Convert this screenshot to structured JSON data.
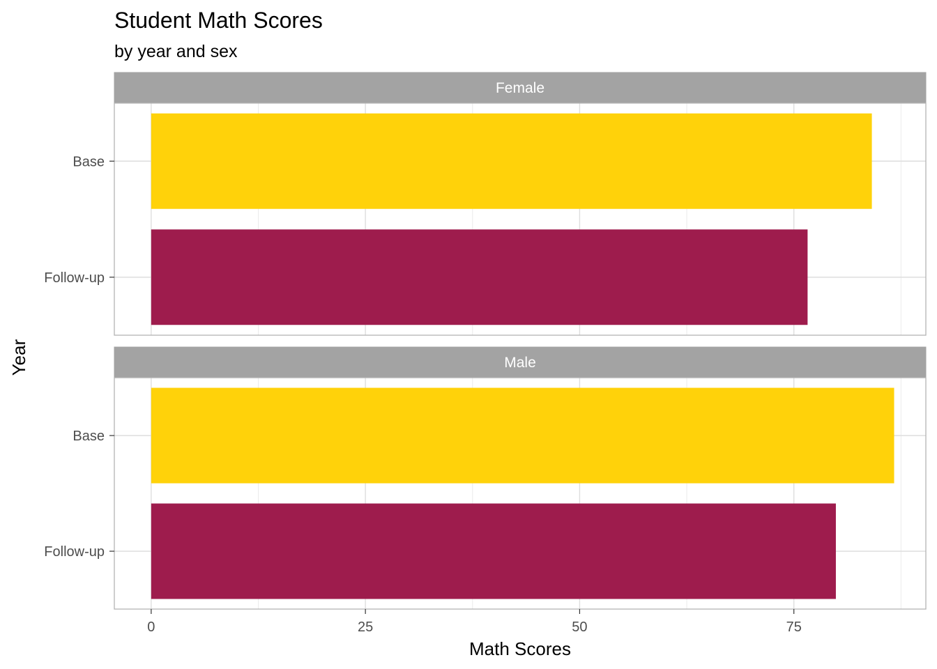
{
  "chart_data": {
    "type": "bar",
    "orientation": "horizontal",
    "title": "Student Math Scores",
    "subtitle": "by year and sex",
    "xlabel": "Math Scores",
    "ylabel": "Year",
    "xlim": [
      -4.3,
      90.4
    ],
    "xticks": [
      0,
      25,
      50,
      75
    ],
    "grid": true,
    "legend": "none",
    "categories": [
      "Base",
      "Follow-up"
    ],
    "colors": {
      "Base": "#FFD20A",
      "Follow-up": "#9E1C4D"
    },
    "facets": [
      {
        "name": "Female",
        "values": {
          "Base": 84.1,
          "Follow-up": 76.6
        }
      },
      {
        "name": "Male",
        "values": {
          "Base": 86.7,
          "Follow-up": 79.9
        }
      }
    ]
  }
}
